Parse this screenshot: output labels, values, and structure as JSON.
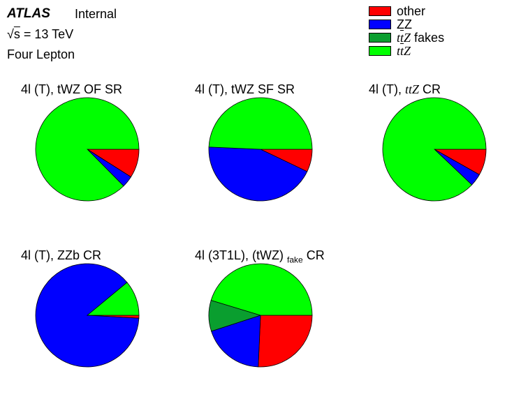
{
  "header": {
    "experiment": "ATLAS",
    "status": "Internal",
    "energy_symbol": "s",
    "energy_value": " = 13 TeV",
    "region": "Four Lepton"
  },
  "legend": {
    "items": [
      {
        "key": "other",
        "label": "other",
        "color": "#ff0000"
      },
      {
        "key": "ZZ",
        "label": "ZZ",
        "color": "#0000ff"
      },
      {
        "key": "ttZ_fakes",
        "label_prefix": "t",
        "label_bar": "t",
        "label_z": "Z",
        "label_suffix": " fakes",
        "color": "#0a9e2f"
      },
      {
        "key": "ttZ",
        "label_prefix": "t",
        "label_bar": "t",
        "label_z": "Z",
        "label_suffix": "",
        "color": "#00ff00"
      }
    ]
  },
  "chart_data": [
    {
      "type": "pie",
      "title": "4l (T), tWZ OF SR",
      "labels": [
        "other",
        "ZZ",
        "ttZ fakes",
        "ttZ"
      ],
      "values": [
        0.09,
        0.036,
        0.0,
        0.874
      ]
    },
    {
      "type": "pie",
      "title": "4l (T), tWZ SF SR",
      "labels": [
        "other",
        "ZZ",
        "ttZ fakes",
        "ttZ"
      ],
      "values": [
        0.071,
        0.436,
        0.0,
        0.493
      ]
    },
    {
      "type": "pie",
      "title_prefix": "4l (T), ",
      "title_math": "ttZ",
      "title_suffix": " CR",
      "labels": [
        "other",
        "ZZ",
        "ttZ fakes",
        "ttZ"
      ],
      "values": [
        0.082,
        0.039,
        0.0,
        0.879
      ]
    },
    {
      "type": "pie",
      "title": "4l (T), ZZb CR",
      "labels": [
        "other",
        "ZZ",
        "ttZ fakes",
        "ttZ"
      ],
      "values": [
        0.009,
        0.881,
        0.0,
        0.11
      ]
    },
    {
      "type": "pie",
      "title_prefix": "4l (3T1L), (tWZ) ",
      "title_sub": "fake",
      "title_suffix": " CR",
      "labels": [
        "other",
        "ZZ",
        "ttZ fakes",
        "ttZ"
      ],
      "values": [
        0.257,
        0.193,
        0.097,
        0.453
      ]
    }
  ]
}
